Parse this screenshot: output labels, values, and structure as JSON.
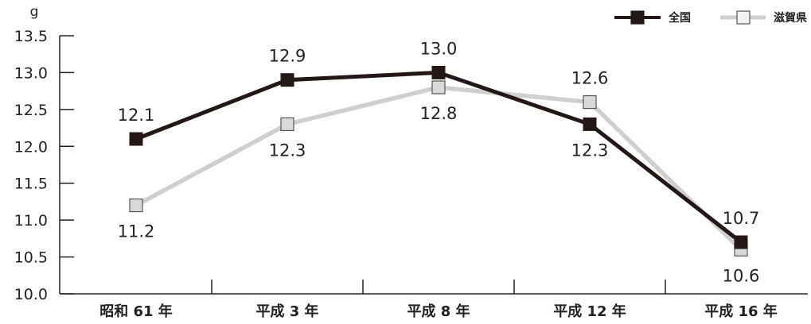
{
  "chart_data": {
    "type": "line",
    "unit_label": "g",
    "categories": [
      "昭和 61 年",
      "平成 3 年",
      "平成 8 年",
      "平成 12 年",
      "平成 16 年"
    ],
    "ylim": [
      10.0,
      13.5
    ],
    "yticks": [
      "10.0",
      "10.5",
      "11.0",
      "11.5",
      "12.0",
      "12.5",
      "13.0",
      "13.5"
    ],
    "grid": false,
    "legend_position": "top-right",
    "series": [
      {
        "name": "全国",
        "color": "#231815",
        "marker_fill": "#231815",
        "values": [
          12.1,
          12.9,
          13.0,
          12.3,
          10.7
        ],
        "labels": [
          "12.1",
          "12.9",
          "13.0",
          "12.3",
          "10.7"
        ],
        "label_positions": [
          "above",
          "above",
          "above",
          "below",
          "above"
        ]
      },
      {
        "name": "滋賀県",
        "color": "#cfcfcf",
        "marker_fill": "#d9d9d9",
        "values": [
          11.2,
          12.3,
          12.8,
          12.6,
          10.6
        ],
        "labels": [
          "11.2",
          "12.3",
          "12.8",
          "12.6",
          "10.6"
        ],
        "label_positions": [
          "below",
          "below",
          "below",
          "above",
          "below"
        ]
      }
    ]
  }
}
